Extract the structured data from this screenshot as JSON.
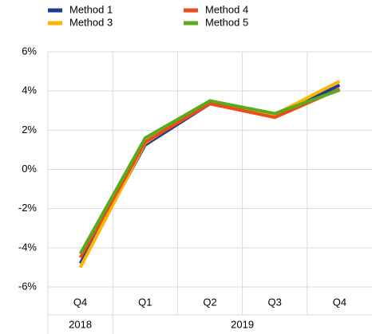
{
  "chart_data": {
    "type": "line",
    "categories": [
      "Q4",
      "Q1",
      "Q2",
      "Q3",
      "Q4"
    ],
    "category_years": [
      "2018",
      "2019",
      null,
      null,
      null
    ],
    "series": [
      {
        "name": "Method 1",
        "color": "#1f3d8f",
        "values": [
          -4.8,
          1.25,
          3.35,
          2.7,
          4.3
        ]
      },
      {
        "name": "Method 3",
        "color": "#ffb400",
        "values": [
          -5.0,
          1.35,
          3.5,
          2.8,
          4.5
        ]
      },
      {
        "name": "Method 4",
        "color": "#ee4b1a",
        "values": [
          -4.5,
          1.4,
          3.35,
          2.65,
          4.1
        ]
      },
      {
        "name": "Method 5",
        "color": "#5aaa1e",
        "values": [
          -4.3,
          1.6,
          3.5,
          2.85,
          4.05
        ]
      }
    ],
    "ylim": [
      -6,
      6
    ],
    "yticks": [
      {
        "value": -6,
        "label": "-6%"
      },
      {
        "value": -4,
        "label": "-4%"
      },
      {
        "value": -2,
        "label": "-2%"
      },
      {
        "value": 0,
        "label": "0%"
      },
      {
        "value": 2,
        "label": "2%"
      },
      {
        "value": 4,
        "label": "4%"
      },
      {
        "value": 6,
        "label": "6%"
      }
    ],
    "grid": true
  }
}
